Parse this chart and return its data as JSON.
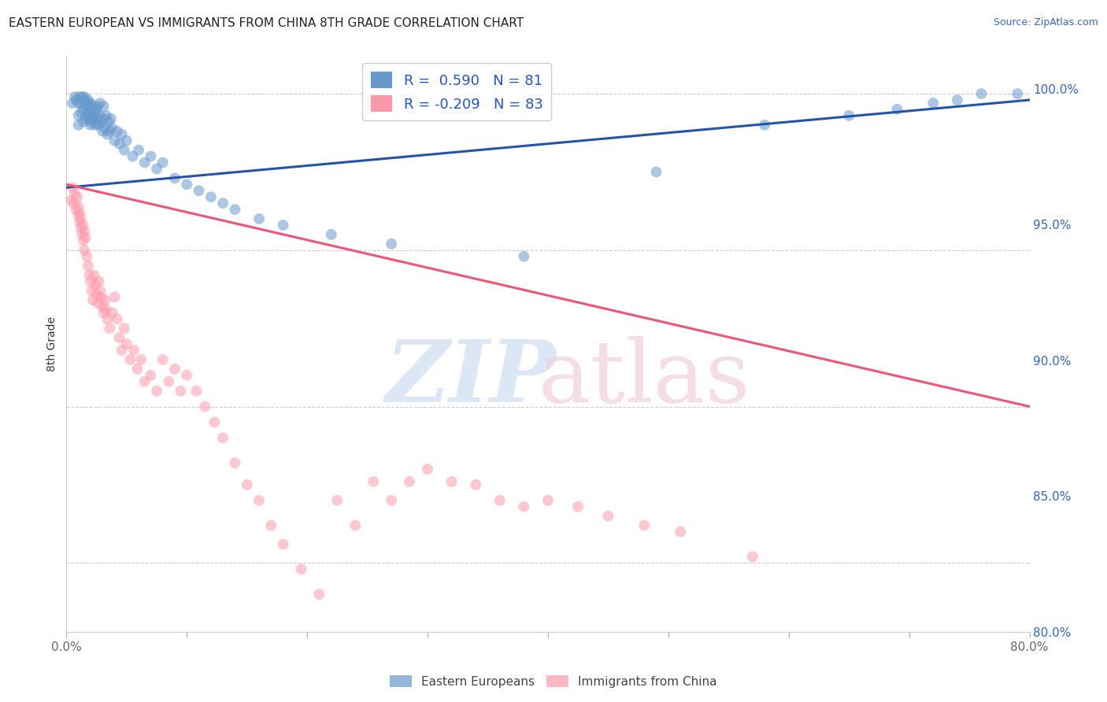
{
  "title": "EASTERN EUROPEAN VS IMMIGRANTS FROM CHINA 8TH GRADE CORRELATION CHART",
  "source": "Source: ZipAtlas.com",
  "ylabel": "8th Grade",
  "xlim": [
    0.0,
    0.8
  ],
  "ylim": [
    0.828,
    1.012
  ],
  "xtick_positions": [
    0.0,
    0.1,
    0.2,
    0.3,
    0.4,
    0.5,
    0.6,
    0.7,
    0.8
  ],
  "xticklabels": [
    "0.0%",
    "",
    "",
    "",
    "",
    "",
    "",
    "",
    "80.0%"
  ],
  "ytick_right_pos": [
    0.8,
    0.85,
    0.9,
    0.95,
    1.0
  ],
  "ytick_right_labels": [
    "80.0%",
    "85.0%",
    "90.0%",
    "95.0%",
    "100.0%"
  ],
  "blue_R": 0.59,
  "blue_N": 81,
  "pink_R": -0.209,
  "pink_N": 83,
  "blue_color": "#6699CC",
  "pink_color": "#FF99AA",
  "blue_line_color": "#2255AA",
  "pink_line_color": "#EE5577",
  "legend_label_blue": "Eastern Europeans",
  "legend_label_pink": "Immigrants from China",
  "blue_line_x0": 0.0,
  "blue_line_y0": 0.97,
  "blue_line_x1": 0.8,
  "blue_line_y1": 0.998,
  "pink_line_x0": 0.0,
  "pink_line_y0": 0.971,
  "pink_line_x1": 0.8,
  "pink_line_y1": 0.9,
  "blue_scatter_x": [
    0.005,
    0.007,
    0.008,
    0.01,
    0.01,
    0.01,
    0.011,
    0.012,
    0.012,
    0.013,
    0.014,
    0.014,
    0.015,
    0.015,
    0.016,
    0.016,
    0.017,
    0.017,
    0.018,
    0.018,
    0.019,
    0.019,
    0.02,
    0.02,
    0.02,
    0.021,
    0.021,
    0.022,
    0.022,
    0.023,
    0.024,
    0.024,
    0.025,
    0.025,
    0.026,
    0.026,
    0.027,
    0.028,
    0.028,
    0.029,
    0.03,
    0.031,
    0.031,
    0.032,
    0.033,
    0.034,
    0.035,
    0.036,
    0.037,
    0.038,
    0.04,
    0.042,
    0.044,
    0.046,
    0.048,
    0.05,
    0.055,
    0.06,
    0.065,
    0.07,
    0.075,
    0.08,
    0.09,
    0.1,
    0.11,
    0.12,
    0.13,
    0.14,
    0.16,
    0.18,
    0.22,
    0.27,
    0.38,
    0.49,
    0.58,
    0.65,
    0.69,
    0.72,
    0.74,
    0.76,
    0.79
  ],
  "blue_scatter_y": [
    0.997,
    0.999,
    0.998,
    0.99,
    0.993,
    0.997,
    0.999,
    0.994,
    0.997,
    0.999,
    0.991,
    0.995,
    0.998,
    0.999,
    0.992,
    0.996,
    0.993,
    0.997,
    0.994,
    0.998,
    0.992,
    0.996,
    0.99,
    0.993,
    0.997,
    0.991,
    0.995,
    0.992,
    0.996,
    0.993,
    0.99,
    0.994,
    0.991,
    0.995,
    0.992,
    0.996,
    0.99,
    0.993,
    0.997,
    0.991,
    0.988,
    0.992,
    0.996,
    0.989,
    0.993,
    0.987,
    0.991,
    0.988,
    0.992,
    0.989,
    0.985,
    0.988,
    0.984,
    0.987,
    0.982,
    0.985,
    0.98,
    0.982,
    0.978,
    0.98,
    0.976,
    0.978,
    0.973,
    0.971,
    0.969,
    0.967,
    0.965,
    0.963,
    0.96,
    0.958,
    0.955,
    0.952,
    0.948,
    0.975,
    0.99,
    0.993,
    0.995,
    0.997,
    0.998,
    1.0,
    1.0
  ],
  "pink_scatter_x": [
    0.004,
    0.005,
    0.006,
    0.007,
    0.008,
    0.009,
    0.01,
    0.01,
    0.011,
    0.011,
    0.012,
    0.012,
    0.013,
    0.014,
    0.014,
    0.015,
    0.015,
    0.016,
    0.017,
    0.018,
    0.019,
    0.02,
    0.021,
    0.022,
    0.023,
    0.024,
    0.025,
    0.026,
    0.027,
    0.028,
    0.029,
    0.03,
    0.031,
    0.032,
    0.033,
    0.034,
    0.036,
    0.038,
    0.04,
    0.042,
    0.044,
    0.046,
    0.048,
    0.05,
    0.053,
    0.056,
    0.059,
    0.062,
    0.065,
    0.07,
    0.075,
    0.08,
    0.085,
    0.09,
    0.095,
    0.1,
    0.108,
    0.115,
    0.123,
    0.13,
    0.14,
    0.15,
    0.16,
    0.17,
    0.18,
    0.195,
    0.21,
    0.225,
    0.24,
    0.255,
    0.27,
    0.285,
    0.3,
    0.32,
    0.34,
    0.36,
    0.38,
    0.4,
    0.425,
    0.45,
    0.48,
    0.51,
    0.57
  ],
  "pink_scatter_y": [
    0.966,
    0.97,
    0.965,
    0.968,
    0.963,
    0.967,
    0.961,
    0.964,
    0.959,
    0.962,
    0.957,
    0.96,
    0.955,
    0.958,
    0.953,
    0.956,
    0.95,
    0.954,
    0.948,
    0.945,
    0.942,
    0.94,
    0.937,
    0.934,
    0.942,
    0.939,
    0.936,
    0.933,
    0.94,
    0.937,
    0.935,
    0.932,
    0.93,
    0.934,
    0.931,
    0.928,
    0.925,
    0.93,
    0.935,
    0.928,
    0.922,
    0.918,
    0.925,
    0.92,
    0.915,
    0.918,
    0.912,
    0.915,
    0.908,
    0.91,
    0.905,
    0.915,
    0.908,
    0.912,
    0.905,
    0.91,
    0.905,
    0.9,
    0.895,
    0.89,
    0.882,
    0.875,
    0.87,
    0.862,
    0.856,
    0.848,
    0.84,
    0.87,
    0.862,
    0.876,
    0.87,
    0.876,
    0.88,
    0.876,
    0.875,
    0.87,
    0.868,
    0.87,
    0.868,
    0.865,
    0.862,
    0.86,
    0.852
  ]
}
